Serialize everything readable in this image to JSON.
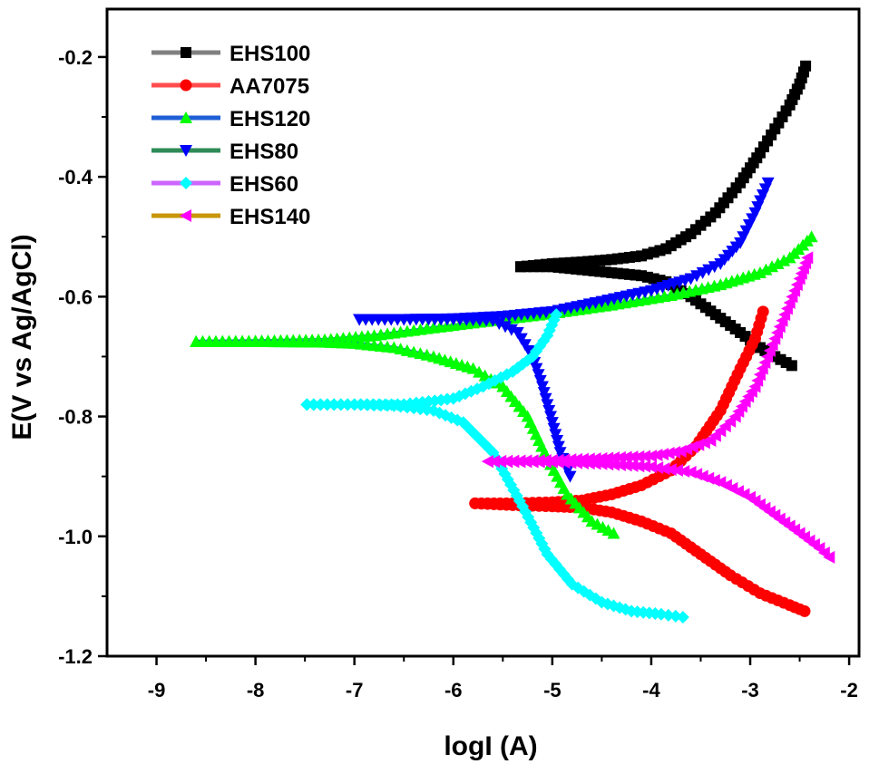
{
  "chart_data": {
    "type": "line",
    "xlabel": "logI (A)",
    "ylabel": "E(V vs Ag/AgCl)",
    "xlim": [
      -9.5,
      -1.9
    ],
    "ylim": [
      -1.2,
      -0.12
    ],
    "x_ticks": [
      -9,
      -8,
      -7,
      -6,
      -5,
      -4,
      -3,
      -2
    ],
    "y_ticks": [
      -1.2,
      -1.0,
      -0.8,
      -0.6,
      -0.4,
      -0.2
    ],
    "x_tick_labels": [
      "-9",
      "-8",
      "-7",
      "-6",
      "-5",
      "-4",
      "-3",
      "-2"
    ],
    "y_tick_labels": [
      "-1.2",
      "-1.0",
      "-0.8",
      "-0.6",
      "-0.4",
      "-0.2"
    ],
    "legend_position": "top-left",
    "grid": false,
    "series": [
      {
        "name": "EHS100",
        "color": "#000000",
        "line_color": "#808080",
        "marker": "square",
        "anodic": [
          [
            -5.32,
            -0.55
          ],
          [
            -5.0,
            -0.545
          ],
          [
            -4.7,
            -0.542
          ],
          [
            -4.4,
            -0.538
          ],
          [
            -4.1,
            -0.532
          ],
          [
            -3.85,
            -0.52
          ],
          [
            -3.6,
            -0.495
          ],
          [
            -3.35,
            -0.46
          ],
          [
            -3.1,
            -0.41
          ],
          [
            -2.9,
            -0.36
          ],
          [
            -2.75,
            -0.32
          ],
          [
            -2.6,
            -0.28
          ],
          [
            -2.5,
            -0.245
          ],
          [
            -2.44,
            -0.215
          ]
        ],
        "cathodic": [
          [
            -5.32,
            -0.55
          ],
          [
            -5.0,
            -0.55
          ],
          [
            -4.7,
            -0.555
          ],
          [
            -4.4,
            -0.56
          ],
          [
            -4.1,
            -0.565
          ],
          [
            -3.85,
            -0.575
          ],
          [
            -3.6,
            -0.6
          ],
          [
            -3.35,
            -0.63
          ],
          [
            -3.1,
            -0.66
          ],
          [
            -2.9,
            -0.685
          ],
          [
            -2.75,
            -0.7
          ],
          [
            -2.58,
            -0.715
          ]
        ]
      },
      {
        "name": "AA7075",
        "color": "#ff0000",
        "line_color": "#ff4d4d",
        "marker": "circle",
        "anodic": [
          [
            -5.78,
            -0.945
          ],
          [
            -5.4,
            -0.945
          ],
          [
            -5.0,
            -0.943
          ],
          [
            -4.7,
            -0.94
          ],
          [
            -4.4,
            -0.93
          ],
          [
            -4.1,
            -0.915
          ],
          [
            -3.8,
            -0.89
          ],
          [
            -3.55,
            -0.85
          ],
          [
            -3.3,
            -0.79
          ],
          [
            -3.1,
            -0.72
          ],
          [
            -2.95,
            -0.67
          ],
          [
            -2.87,
            -0.625
          ]
        ],
        "cathodic": [
          [
            -5.78,
            -0.945
          ],
          [
            -5.4,
            -0.948
          ],
          [
            -5.0,
            -0.95
          ],
          [
            -4.7,
            -0.952
          ],
          [
            -4.4,
            -0.96
          ],
          [
            -4.1,
            -0.975
          ],
          [
            -3.8,
            -0.995
          ],
          [
            -3.5,
            -1.03
          ],
          [
            -3.2,
            -1.065
          ],
          [
            -2.9,
            -1.095
          ],
          [
            -2.6,
            -1.115
          ],
          [
            -2.45,
            -1.125
          ]
        ]
      },
      {
        "name": "EHS120",
        "color": "#00ff00",
        "line_color": "#1f5fd6",
        "marker": "triangle-up",
        "anodic": [
          [
            -8.6,
            -0.675
          ],
          [
            -8.0,
            -0.674
          ],
          [
            -7.3,
            -0.672
          ],
          [
            -6.8,
            -0.665
          ],
          [
            -6.2,
            -0.652
          ],
          [
            -5.6,
            -0.64
          ],
          [
            -5.0,
            -0.628
          ],
          [
            -4.4,
            -0.614
          ],
          [
            -3.8,
            -0.598
          ],
          [
            -3.3,
            -0.58
          ],
          [
            -2.9,
            -0.56
          ],
          [
            -2.6,
            -0.535
          ],
          [
            -2.38,
            -0.5
          ]
        ],
        "cathodic": [
          [
            -8.6,
            -0.675
          ],
          [
            -8.0,
            -0.675
          ],
          [
            -7.3,
            -0.676
          ],
          [
            -7.0,
            -0.678
          ],
          [
            -6.6,
            -0.685
          ],
          [
            -6.2,
            -0.7
          ],
          [
            -5.8,
            -0.72
          ],
          [
            -5.5,
            -0.75
          ],
          [
            -5.25,
            -0.8
          ],
          [
            -5.05,
            -0.87
          ],
          [
            -4.85,
            -0.93
          ],
          [
            -4.6,
            -0.975
          ],
          [
            -4.38,
            -0.995
          ]
        ]
      },
      {
        "name": "EHS80",
        "color": "#0000ff",
        "line_color": "#2e8b57",
        "marker": "triangle-down",
        "anodic": [
          [
            -6.95,
            -0.638
          ],
          [
            -6.5,
            -0.638
          ],
          [
            -6.0,
            -0.637
          ],
          [
            -5.5,
            -0.633
          ],
          [
            -5.0,
            -0.625
          ],
          [
            -4.5,
            -0.608
          ],
          [
            -4.0,
            -0.59
          ],
          [
            -3.6,
            -0.57
          ],
          [
            -3.3,
            -0.545
          ],
          [
            -3.1,
            -0.51
          ],
          [
            -2.95,
            -0.46
          ],
          [
            -2.82,
            -0.41
          ]
        ],
        "cathodic": [
          [
            -6.95,
            -0.638
          ],
          [
            -6.5,
            -0.638
          ],
          [
            -6.0,
            -0.638
          ],
          [
            -5.6,
            -0.64
          ],
          [
            -5.35,
            -0.66
          ],
          [
            -5.2,
            -0.7
          ],
          [
            -5.1,
            -0.75
          ],
          [
            -5.0,
            -0.81
          ],
          [
            -4.92,
            -0.86
          ],
          [
            -4.82,
            -0.9
          ]
        ]
      },
      {
        "name": "EHS60",
        "color": "#00ffff",
        "line_color": "#cc66ff",
        "marker": "diamond",
        "anodic": [
          [
            -7.48,
            -0.78
          ],
          [
            -7.0,
            -0.78
          ],
          [
            -6.5,
            -0.78
          ],
          [
            -6.0,
            -0.77
          ],
          [
            -5.7,
            -0.75
          ],
          [
            -5.4,
            -0.725
          ],
          [
            -5.2,
            -0.7
          ],
          [
            -5.05,
            -0.665
          ],
          [
            -4.96,
            -0.63
          ]
        ],
        "cathodic": [
          [
            -7.48,
            -0.78
          ],
          [
            -7.0,
            -0.78
          ],
          [
            -6.6,
            -0.782
          ],
          [
            -6.2,
            -0.79
          ],
          [
            -5.9,
            -0.81
          ],
          [
            -5.6,
            -0.86
          ],
          [
            -5.3,
            -0.95
          ],
          [
            -5.05,
            -1.03
          ],
          [
            -4.8,
            -1.08
          ],
          [
            -4.5,
            -1.11
          ],
          [
            -4.2,
            -1.125
          ],
          [
            -3.9,
            -1.13
          ],
          [
            -3.68,
            -1.135
          ]
        ]
      },
      {
        "name": "EHS140",
        "color": "#ff00ff",
        "line_color": "#c8960a",
        "marker": "triangle-left",
        "anodic": [
          [
            -5.65,
            -0.875
          ],
          [
            -5.0,
            -0.873
          ],
          [
            -4.5,
            -0.87
          ],
          [
            -4.0,
            -0.866
          ],
          [
            -3.7,
            -0.858
          ],
          [
            -3.4,
            -0.84
          ],
          [
            -3.15,
            -0.8
          ],
          [
            -2.95,
            -0.75
          ],
          [
            -2.8,
            -0.69
          ],
          [
            -2.65,
            -0.63
          ],
          [
            -2.5,
            -0.57
          ],
          [
            -2.42,
            -0.535
          ]
        ],
        "cathodic": [
          [
            -5.65,
            -0.875
          ],
          [
            -5.0,
            -0.876
          ],
          [
            -4.5,
            -0.879
          ],
          [
            -4.0,
            -0.884
          ],
          [
            -3.6,
            -0.893
          ],
          [
            -3.3,
            -0.91
          ],
          [
            -3.0,
            -0.935
          ],
          [
            -2.75,
            -0.965
          ],
          [
            -2.5,
            -0.995
          ],
          [
            -2.3,
            -1.02
          ],
          [
            -2.2,
            -1.035
          ]
        ]
      }
    ]
  }
}
